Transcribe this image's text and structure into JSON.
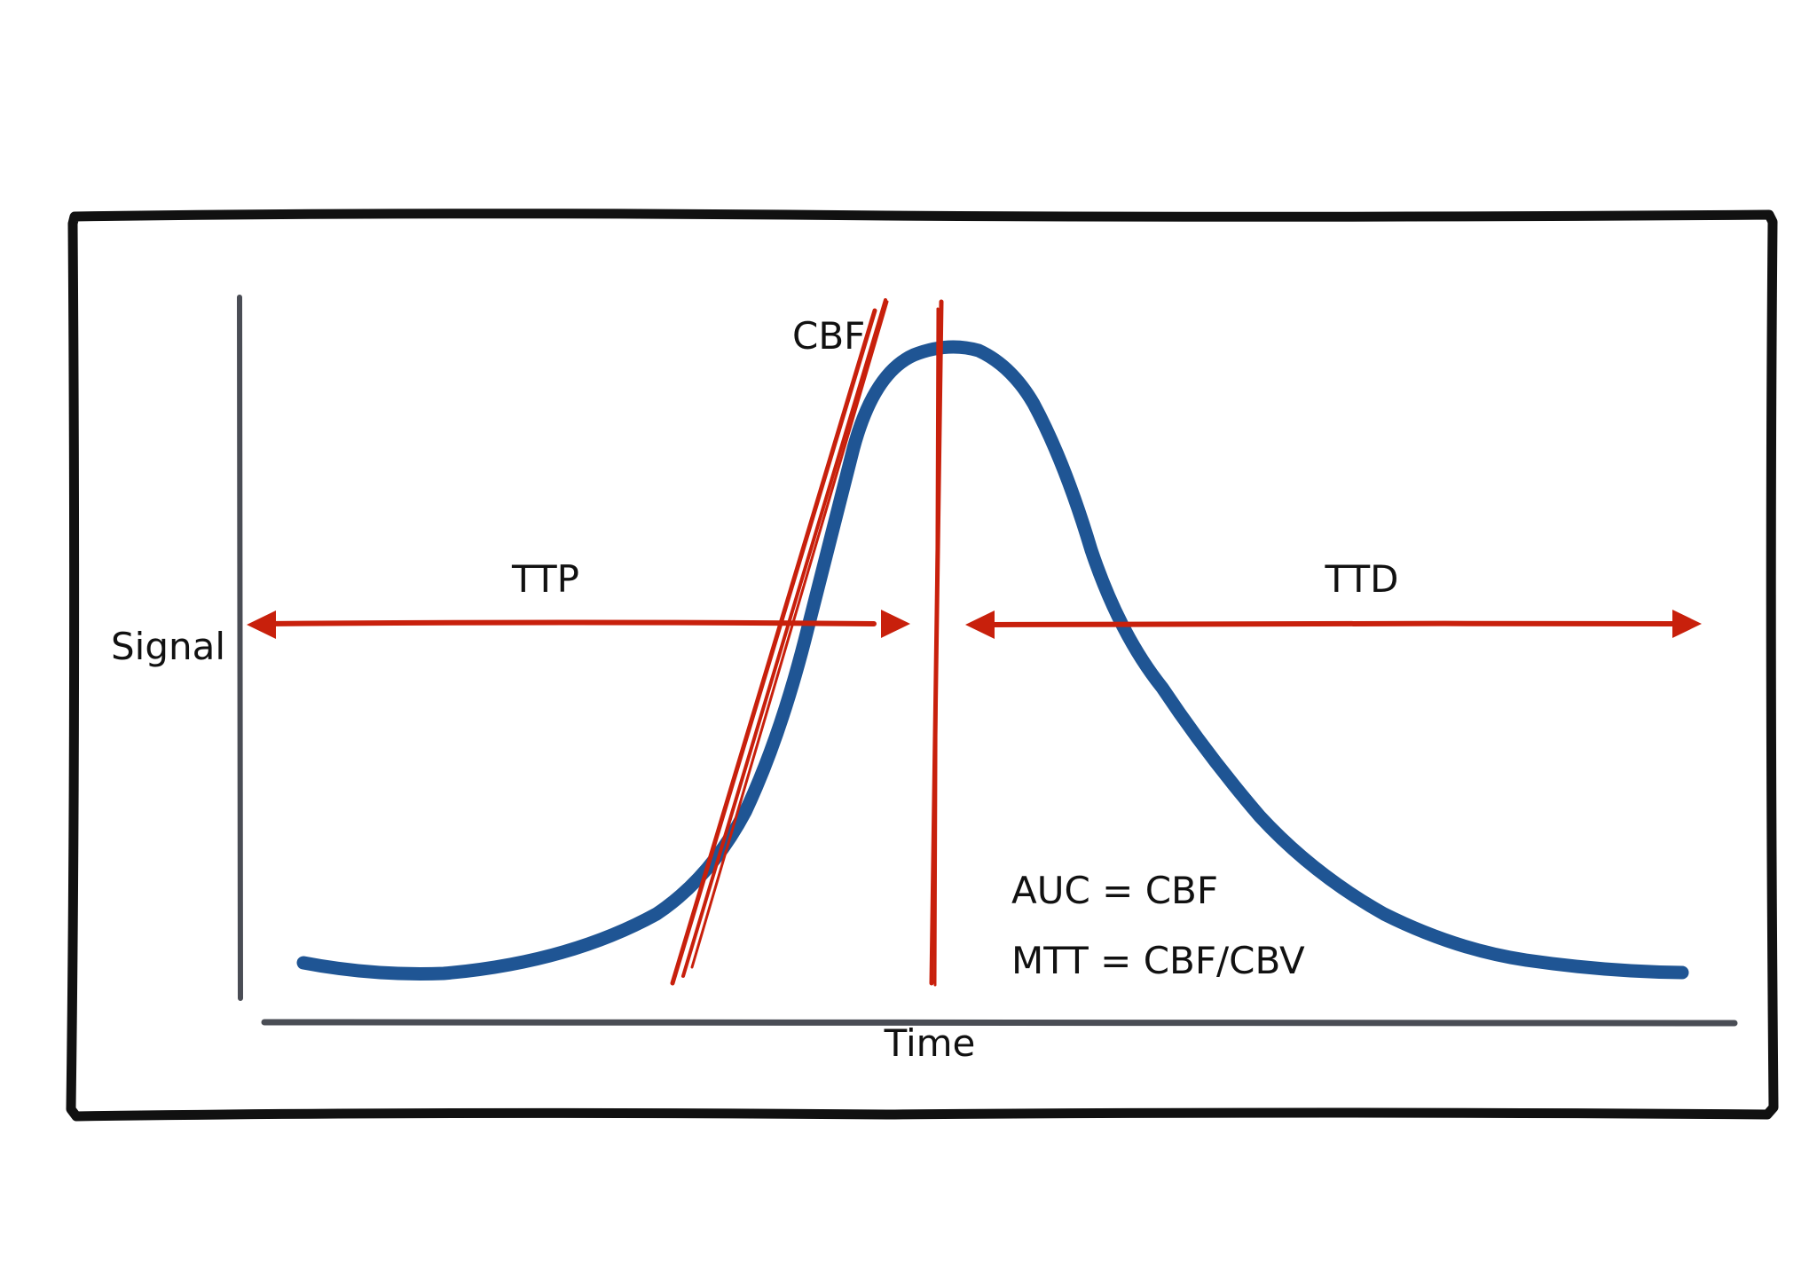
{
  "labels": {
    "y_axis": "Signal",
    "x_axis": "Time",
    "slope": "CBF",
    "ttp": "TTP",
    "ttd": "TTD",
    "auc": "AUC = CBF",
    "mtt": "MTT = CBF/CBV"
  },
  "colors": {
    "curve": "#1f5594",
    "annotation": "#c8200c",
    "axis": "#4a4d55",
    "frame": "#111111"
  }
}
